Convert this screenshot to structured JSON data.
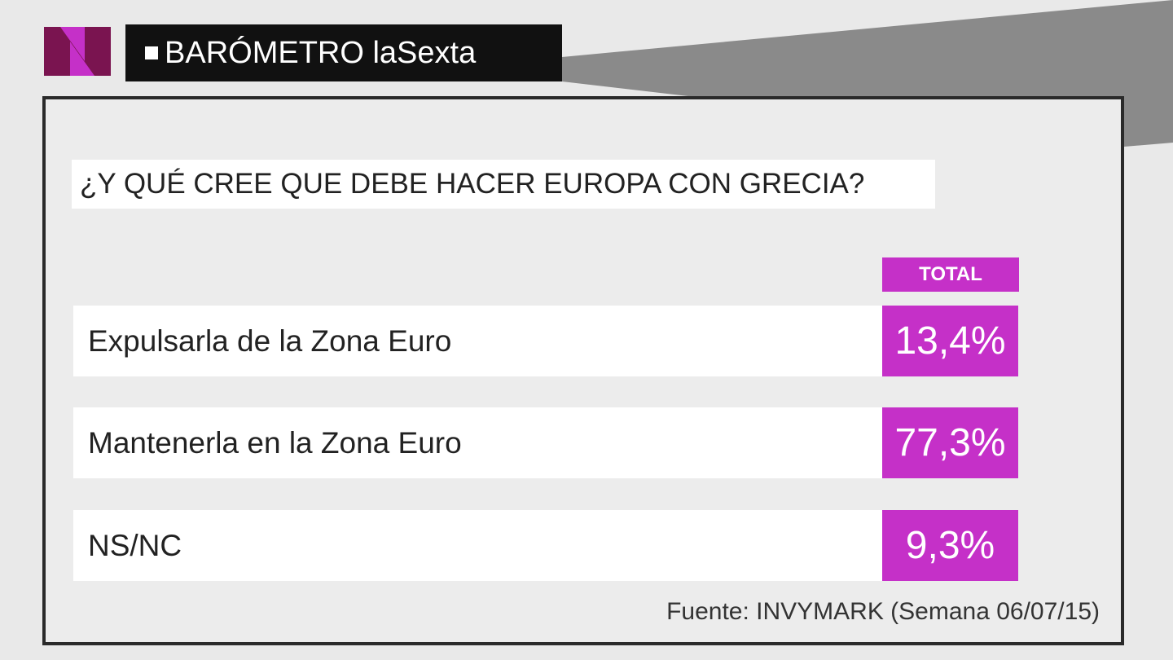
{
  "header": {
    "title": "BARÓMETRO laSexta"
  },
  "question": "¿Y QUÉ CREE QUE DEBE HACER EUROPA CON GRECIA?",
  "table": {
    "column_header": "TOTAL",
    "rows": [
      [
        "Expulsarla de la Zona Euro",
        "13,4%"
      ],
      [
        "Mantenerla en la Zona Euro",
        "77,3%"
      ],
      [
        "NS/NC",
        "9,3%"
      ]
    ]
  },
  "source": "Fuente: INVYMARK (Semana 06/07/15)"
}
